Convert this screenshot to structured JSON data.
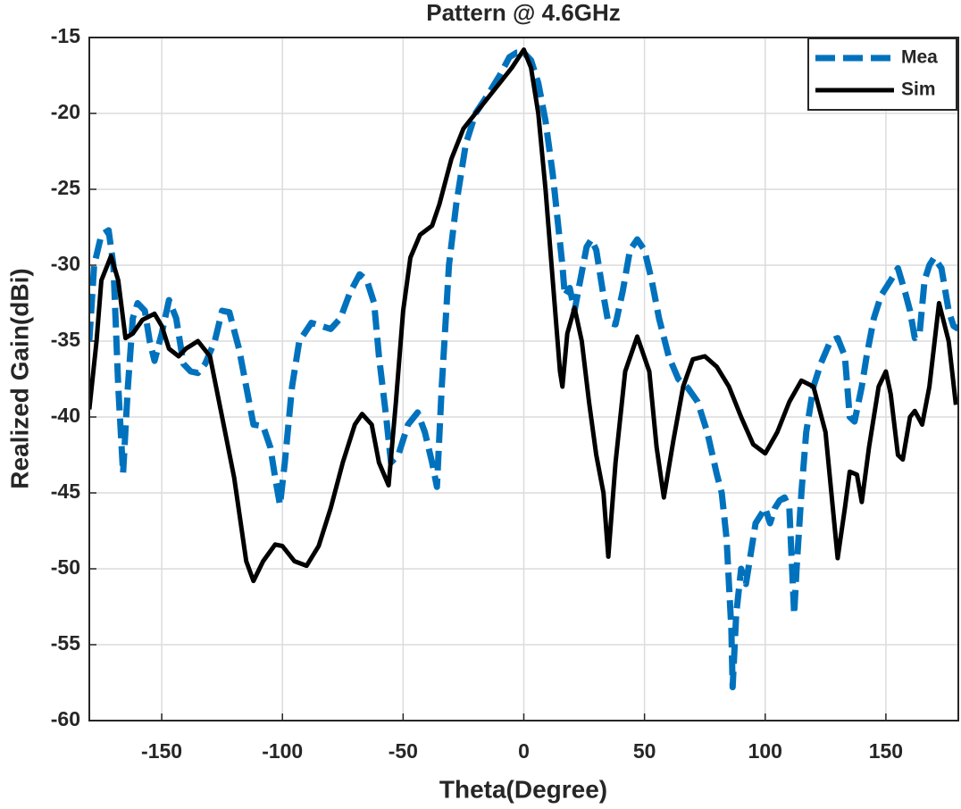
{
  "chart_data": {
    "type": "line",
    "title": "Pattern @ 4.6GHz",
    "x_label": "Theta(Degree)",
    "y_label": "Realized Gain(dBi)",
    "xlim": [
      -180,
      180
    ],
    "ylim": [
      -60,
      -15
    ],
    "xticks": [
      -150,
      -100,
      -50,
      0,
      50,
      100,
      150
    ],
    "yticks": [
      -15,
      -20,
      -25,
      -30,
      -35,
      -40,
      -45,
      -50,
      -55,
      -60
    ],
    "grid": true,
    "legend": "upper right",
    "series": [
      {
        "name": "Mea",
        "color": "#0072bd",
        "dash": true,
        "x": [
          -180,
          -178,
          -175,
          -172,
          -170,
          -168,
          -166,
          -164,
          -162,
          -160,
          -157,
          -155,
          -153,
          -150,
          -147,
          -144,
          -141,
          -138,
          -135,
          -132,
          -128,
          -125,
          -122,
          -118,
          -115,
          -112,
          -108,
          -105,
          -103,
          -101,
          -99,
          -96,
          -93,
          -88,
          -84,
          -80,
          -76,
          -72,
          -68,
          -65,
          -62,
          -60,
          -57,
          -55,
          -52,
          -48,
          -44,
          -41,
          -38,
          -36,
          -34,
          -31,
          -28,
          -24,
          -20,
          -15,
          -10,
          -6,
          -3,
          0,
          3,
          6,
          9,
          12,
          14,
          16,
          17,
          19,
          21,
          23,
          26,
          28,
          30,
          33,
          35,
          38,
          41,
          44,
          47,
          50,
          53,
          56,
          60,
          64,
          68,
          72,
          76,
          80,
          82,
          84,
          85,
          86,
          86.5,
          88,
          90,
          92,
          94,
          96,
          98,
          100,
          102,
          104,
          106,
          108,
          110,
          112,
          113,
          115,
          117,
          120,
          123,
          127,
          130,
          133,
          135,
          137,
          140,
          142,
          145,
          148,
          152,
          155,
          158,
          160,
          162,
          164,
          166,
          168,
          170,
          173,
          176,
          178,
          180
        ],
        "values": [
          -35,
          -30,
          -28,
          -27.7,
          -30,
          -38,
          -43.7,
          -38,
          -33.5,
          -32.5,
          -33,
          -35,
          -36.3,
          -34.5,
          -32.3,
          -33.5,
          -36.5,
          -37,
          -37.1,
          -36.5,
          -35,
          -33,
          -33.1,
          -35.5,
          -38,
          -40.5,
          -40.6,
          -42,
          -44,
          -45.8,
          -43,
          -38,
          -35,
          -33.8,
          -34,
          -34.2,
          -33.5,
          -31.8,
          -30.6,
          -31,
          -32.5,
          -36,
          -40,
          -43,
          -42.5,
          -40.5,
          -39.7,
          -41,
          -43,
          -44.6,
          -38,
          -30,
          -26,
          -22,
          -20,
          -18.8,
          -17.5,
          -16.3,
          -16,
          -16,
          -16.5,
          -18,
          -20.5,
          -24,
          -27,
          -30,
          -32,
          -31.5,
          -33,
          -31.3,
          -28.8,
          -28.3,
          -29,
          -32,
          -33.8,
          -33.9,
          -31.7,
          -29,
          -28.3,
          -29,
          -31,
          -33.5,
          -36,
          -37.5,
          -38.1,
          -39,
          -41,
          -43.8,
          -45,
          -48,
          -51,
          -54,
          -57.8,
          -53,
          -50,
          -51,
          -49,
          -47,
          -46.5,
          -46,
          -47,
          -46,
          -45.5,
          -45.3,
          -46,
          -53,
          -50,
          -45,
          -41,
          -38,
          -36.5,
          -35,
          -34.8,
          -36,
          -40,
          -40.3,
          -38,
          -36,
          -33.5,
          -32,
          -31,
          -30.2,
          -31.8,
          -33,
          -34.8,
          -34.4,
          -31,
          -30,
          -29.5,
          -30.2,
          -33,
          -34,
          -34.2
        ]
      },
      {
        "name": "Sim",
        "color": "#000000",
        "dash": false,
        "x": [
          -180,
          -177,
          -175,
          -171,
          -168,
          -165,
          -162,
          -158,
          -153,
          -150,
          -147,
          -143,
          -140,
          -135,
          -130,
          -125,
          -120,
          -115,
          -112,
          -108,
          -103,
          -100,
          -95,
          -90,
          -85,
          -80,
          -75,
          -70,
          -67,
          -63,
          -60,
          -56,
          -53,
          -50,
          -47,
          -43,
          -38,
          -35,
          -30,
          -25,
          -20,
          -15,
          -10,
          -5,
          0,
          3,
          6,
          9,
          12,
          15,
          16,
          18,
          21,
          24,
          27,
          30,
          33,
          35,
          38,
          42,
          47,
          52,
          55,
          58,
          62,
          66,
          70,
          75,
          80,
          85,
          90,
          95,
          100,
          105,
          110,
          115,
          120,
          125,
          128,
          130,
          133,
          135,
          138,
          140,
          143,
          147,
          150,
          152,
          155,
          157,
          160,
          162,
          165,
          168,
          172,
          176,
          179
        ],
        "values": [
          -39.5,
          -35,
          -31,
          -29.4,
          -31,
          -34.8,
          -34.5,
          -33.6,
          -33.2,
          -34,
          -35.5,
          -36,
          -35.5,
          -35,
          -36,
          -40,
          -44,
          -49.5,
          -50.8,
          -49.5,
          -48.4,
          -48.5,
          -49.5,
          -49.8,
          -48.5,
          -46,
          -43,
          -40.5,
          -39.8,
          -40.5,
          -43,
          -44.5,
          -39,
          -33,
          -29.5,
          -28,
          -27.4,
          -26,
          -23,
          -21,
          -20,
          -19,
          -18,
          -17,
          -15.8,
          -17,
          -20,
          -25,
          -31,
          -37,
          -38,
          -34.5,
          -32.8,
          -35,
          -39,
          -42.5,
          -45,
          -49.2,
          -43,
          -37,
          -34.7,
          -37,
          -42,
          -45.3,
          -41.5,
          -38,
          -36.2,
          -36,
          -36.7,
          -38,
          -40,
          -41.8,
          -42.4,
          -41,
          -39,
          -37.6,
          -38,
          -41,
          -46,
          -49.3,
          -46,
          -43.6,
          -43.8,
          -45.6,
          -42,
          -38,
          -37,
          -38.5,
          -42.5,
          -42.8,
          -40,
          -39.6,
          -40.5,
          -38,
          -32.5,
          -35,
          -39.2
        ]
      }
    ]
  }
}
